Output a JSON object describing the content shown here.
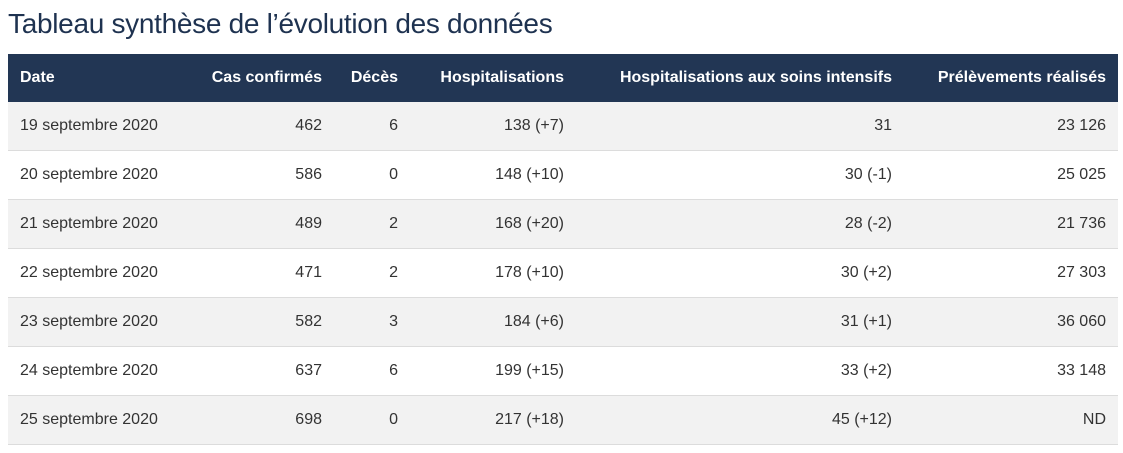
{
  "page": {
    "title": "Tableau synthèse de l’évolution des données"
  },
  "table": {
    "columns": [
      "Date",
      "Cas confirmés",
      "Décès",
      "Hospitalisations",
      "Hospitalisations aux soins intensifs",
      "Prélèvements réalisés"
    ],
    "rows": [
      [
        "19 septembre 2020",
        "462",
        "6",
        "138 (+7)",
        "31",
        "23 126"
      ],
      [
        "20 septembre 2020",
        "586",
        "0",
        "148 (+10)",
        "30 (-1)",
        "25 025"
      ],
      [
        "21 septembre 2020",
        "489",
        "2",
        "168 (+20)",
        "28 (-2)",
        "21 736"
      ],
      [
        "22 septembre 2020",
        "471",
        "2",
        "178 (+10)",
        "30 (+2)",
        "27 303"
      ],
      [
        "23 septembre 2020",
        "582",
        "3",
        "184 (+6)",
        "31 (+1)",
        "36 060"
      ],
      [
        "24 septembre 2020",
        "637",
        "6",
        "199 (+15)",
        "33 (+2)",
        "33 148"
      ],
      [
        "25 septembre 2020",
        "698",
        "0",
        "217 (+18)",
        "45 (+12)",
        "ND"
      ]
    ]
  },
  "colors": {
    "header_background": "#223654",
    "title_text": "#1e3250",
    "row_stripe": "#f2f2f2"
  }
}
